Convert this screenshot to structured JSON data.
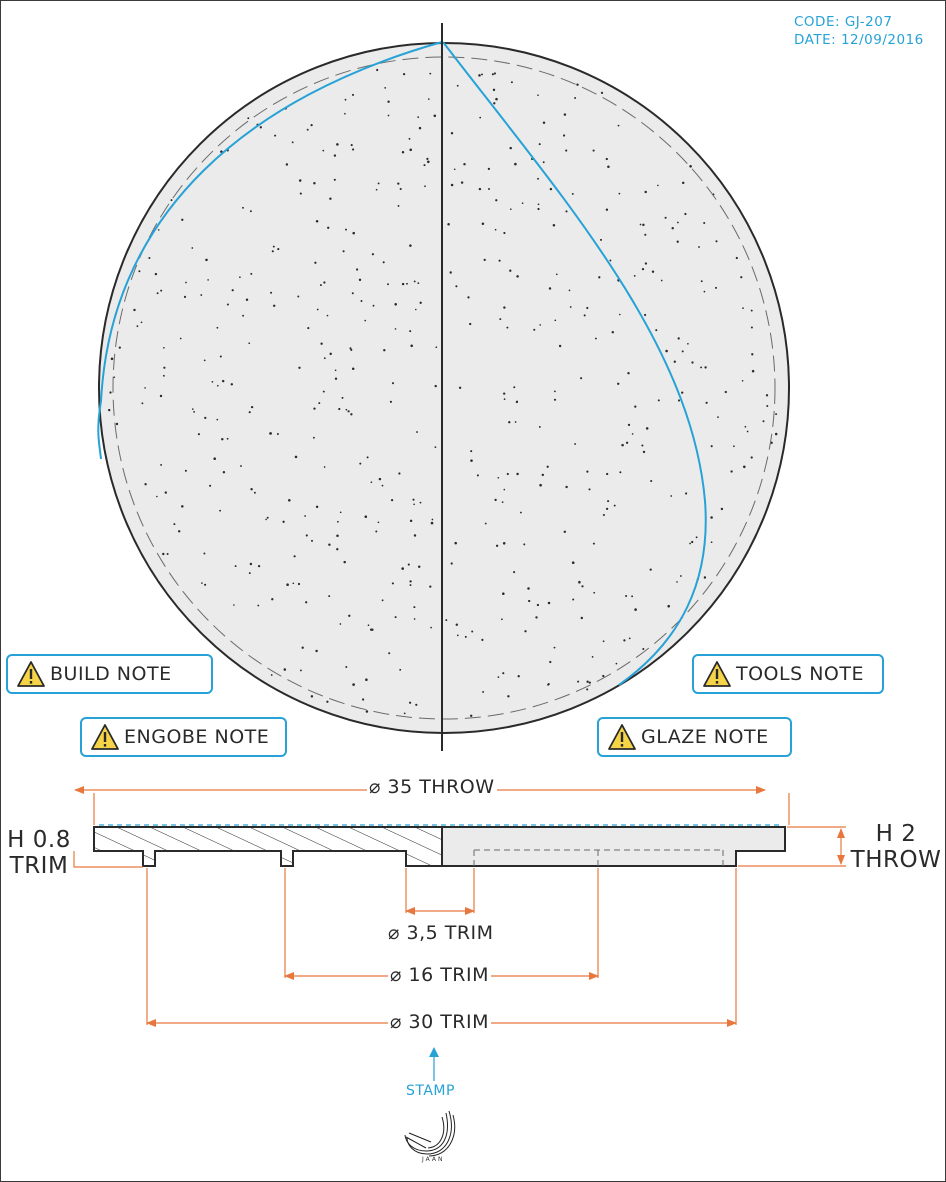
{
  "meta": {
    "code": "CODE: GJ-207",
    "date": "DATE: 12/09/2016"
  },
  "notes": {
    "build": "BUILD NOTE",
    "engobe": "ENGOBE NOTE",
    "tools": "TOOLS NOTE",
    "glaze": "GLAZE NOTE"
  },
  "dims": {
    "outer": "⌀ 35  THROW",
    "d35": "⌀ 3,5  TRIM",
    "d16": "⌀ 16  TRIM",
    "d30": "⌀ 30  TRIM",
    "h08_a": "H 0.8",
    "h08_b": "TRIM",
    "h2_a": "H 2",
    "h2_b": "THROW"
  },
  "stamp": {
    "label": "STAMP",
    "signature": "JAAN"
  },
  "colors": {
    "accent": "#27a2d6",
    "dimension": "#e8773d",
    "fill": "#ebebeb",
    "line": "#2a2a2a"
  },
  "icons": [
    "warning-icon",
    "signature-mark"
  ]
}
